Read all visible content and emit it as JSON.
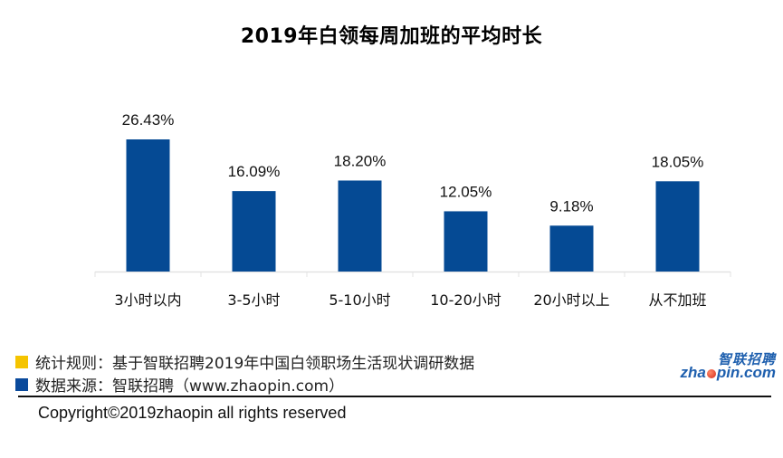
{
  "chart_data": {
    "type": "bar",
    "title": "2019年白领每周加班的平均时长",
    "categories": [
      "3小时以内",
      "3-5小时",
      "5-10小时",
      "10-20小时",
      "20小时以上",
      "从不加班"
    ],
    "values": [
      26.43,
      16.09,
      18.2,
      12.05,
      9.18,
      18.05
    ],
    "data_labels": [
      "26.43%",
      "16.09%",
      "18.20%",
      "12.05%",
      "9.18%",
      "18.05%"
    ],
    "unit": "%",
    "xlabel": "",
    "ylabel": "",
    "ylim": [
      0,
      30
    ],
    "grid": false,
    "legend": "none",
    "bar_color": "#054a94"
  },
  "footer": {
    "notes": [
      {
        "text": "统计规则：基于智联招聘2019年中国白领职场生活现状调研数据",
        "color": "#f5c400"
      },
      {
        "text": "数据来源：智联招聘（www.zhaopin.com）",
        "color": "#0a4a9c"
      }
    ],
    "copyright": "Copyright©2019zhaopin all rights reserved",
    "logo": {
      "cn": "智联招聘",
      "en_pre": "zha",
      "en_post": "pin.com"
    }
  }
}
